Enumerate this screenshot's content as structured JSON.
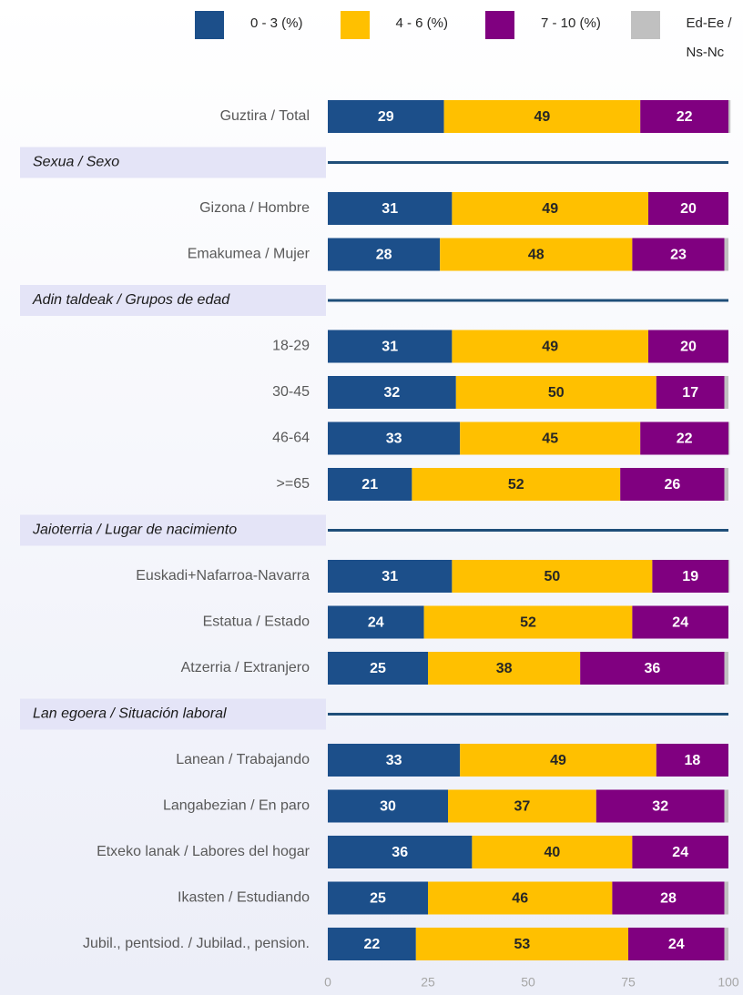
{
  "chart_data": {
    "type": "stacked-barh",
    "categories": [
      "Guztira / Total",
      "Sexua / Sexo",
      "Gizona /  Hombre",
      "Emakumea / Mujer",
      "Adin taldeak / Grupos de edad",
      "18-29",
      "30-45",
      "46-64",
      ">=65",
      "Jaioterria / Lugar de nacimiento",
      "Euskadi+Nafarroa-Navarra",
      "Estatua / Estado",
      "Atzerria / Extranjero",
      "Lan egoera / Situación laboral",
      "Lanean / Trabajando",
      "Langabezian / En paro",
      "Etxeko lanak / Labores del hogar",
      "Ikasten / Estudiando",
      "Jubil., pentsiod. / Jubilad., pension."
    ],
    "series": [
      {
        "name": "0 - 3 (%)",
        "color": "#1c4f8a",
        "label_color": "#ffffff",
        "show_labels": true,
        "values": [
          29,
          null,
          31,
          28,
          null,
          31,
          32,
          33,
          21,
          null,
          31,
          24,
          25,
          null,
          33,
          30,
          36,
          25,
          22
        ]
      },
      {
        "name": "4 - 6 (%)",
        "color": "#ffc000",
        "label_color": "#262626",
        "show_labels": true,
        "values": [
          49,
          null,
          49,
          48,
          null,
          49,
          50,
          45,
          52,
          null,
          50,
          52,
          38,
          null,
          49,
          37,
          40,
          46,
          53
        ]
      },
      {
        "name": "7 - 10 (%)",
        "color": "#800080",
        "label_color": "#ffffff",
        "show_labels": true,
        "values": [
          22,
          null,
          20,
          23,
          null,
          20,
          17,
          22,
          26,
          null,
          19,
          24,
          36,
          null,
          18,
          32,
          24,
          28,
          24
        ]
      },
      {
        "name": "Ed-Ee / Ns-Nc",
        "color": "#c0c0c0",
        "label_color": "#262626",
        "show_labels": false,
        "values": [
          0.5,
          null,
          0,
          1,
          null,
          0,
          1,
          0.3,
          1,
          null,
          0.3,
          0,
          1,
          null,
          0,
          1,
          0,
          1,
          1
        ]
      }
    ],
    "xlim": [
      0,
      100
    ],
    "xticks": [
      0,
      25,
      50,
      75,
      100
    ],
    "grid": false,
    "legend": "top"
  }
}
